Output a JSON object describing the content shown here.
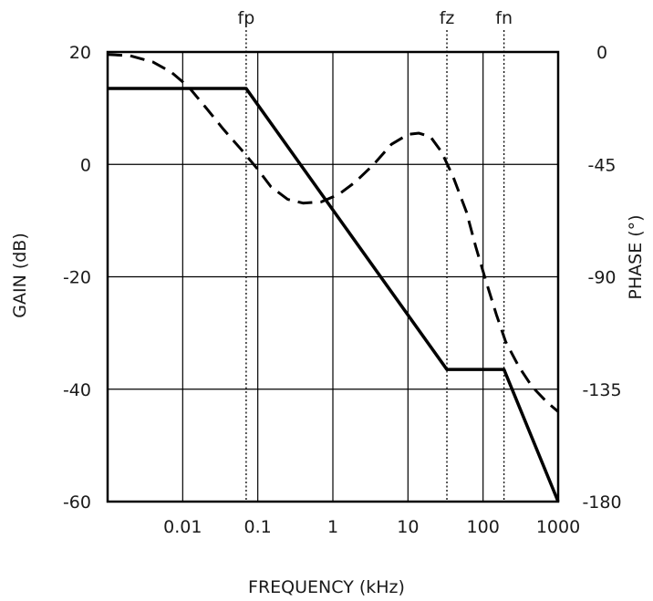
{
  "chart_data": {
    "type": "line",
    "title": "",
    "xlabel": "FREQUENCY (kHz)",
    "ylabel_left": "GAIN (dB)",
    "ylabel_right": "PHASE (°)",
    "x_scale": "log",
    "xlim": [
      0.001,
      1000
    ],
    "ylim_left": [
      -60,
      20
    ],
    "ylim_right": [
      -180,
      0
    ],
    "grid": true,
    "x_ticks": [
      {
        "value": 0.01,
        "label": "0.01"
      },
      {
        "value": 0.1,
        "label": "0.1"
      },
      {
        "value": 1,
        "label": "1"
      },
      {
        "value": 10,
        "label": "10"
      },
      {
        "value": 100,
        "label": "100"
      },
      {
        "value": 1000,
        "label": "1000"
      }
    ],
    "y_ticks_left": [
      {
        "value": 20,
        "label": "20"
      },
      {
        "value": 0,
        "label": "0"
      },
      {
        "value": -20,
        "label": "-20"
      },
      {
        "value": -40,
        "label": "-40"
      },
      {
        "value": -60,
        "label": "-60"
      }
    ],
    "y_ticks_right": [
      {
        "value": 0,
        "label": "0"
      },
      {
        "value": -45,
        "label": "-45"
      },
      {
        "value": -90,
        "label": "-90"
      },
      {
        "value": -135,
        "label": "-135"
      },
      {
        "value": -180,
        "label": "-180"
      }
    ],
    "markers": [
      {
        "label": "fp",
        "x": 0.07
      },
      {
        "label": "fz",
        "x": 33
      },
      {
        "label": "fn",
        "x": 190
      }
    ],
    "series": [
      {
        "axis": "left",
        "style": "solid",
        "color": "#000000",
        "points": [
          [
            0.001,
            13.5
          ],
          [
            0.07,
            13.5
          ],
          [
            33,
            -36.5
          ],
          [
            190,
            -36.5
          ],
          [
            1000,
            -60
          ]
        ]
      },
      {
        "axis": "right",
        "style": "dashed",
        "color": "#000000",
        "points": [
          [
            0.001,
            -1
          ],
          [
            0.002,
            -1.5
          ],
          [
            0.004,
            -4
          ],
          [
            0.007,
            -8
          ],
          [
            0.012,
            -14
          ],
          [
            0.02,
            -22
          ],
          [
            0.035,
            -31
          ],
          [
            0.06,
            -39
          ],
          [
            0.1,
            -47
          ],
          [
            0.15,
            -54
          ],
          [
            0.25,
            -59
          ],
          [
            0.4,
            -60.5
          ],
          [
            0.7,
            -60
          ],
          [
            1.2,
            -57
          ],
          [
            2,
            -52
          ],
          [
            3.5,
            -45
          ],
          [
            6,
            -37
          ],
          [
            10,
            -33
          ],
          [
            14,
            -32.5
          ],
          [
            20,
            -34
          ],
          [
            28,
            -40
          ],
          [
            40,
            -50
          ],
          [
            60,
            -64
          ],
          [
            80,
            -78
          ],
          [
            110,
            -92
          ],
          [
            150,
            -105
          ],
          [
            200,
            -116
          ],
          [
            300,
            -126
          ],
          [
            450,
            -134
          ],
          [
            700,
            -140
          ],
          [
            1000,
            -144
          ]
        ]
      }
    ]
  }
}
